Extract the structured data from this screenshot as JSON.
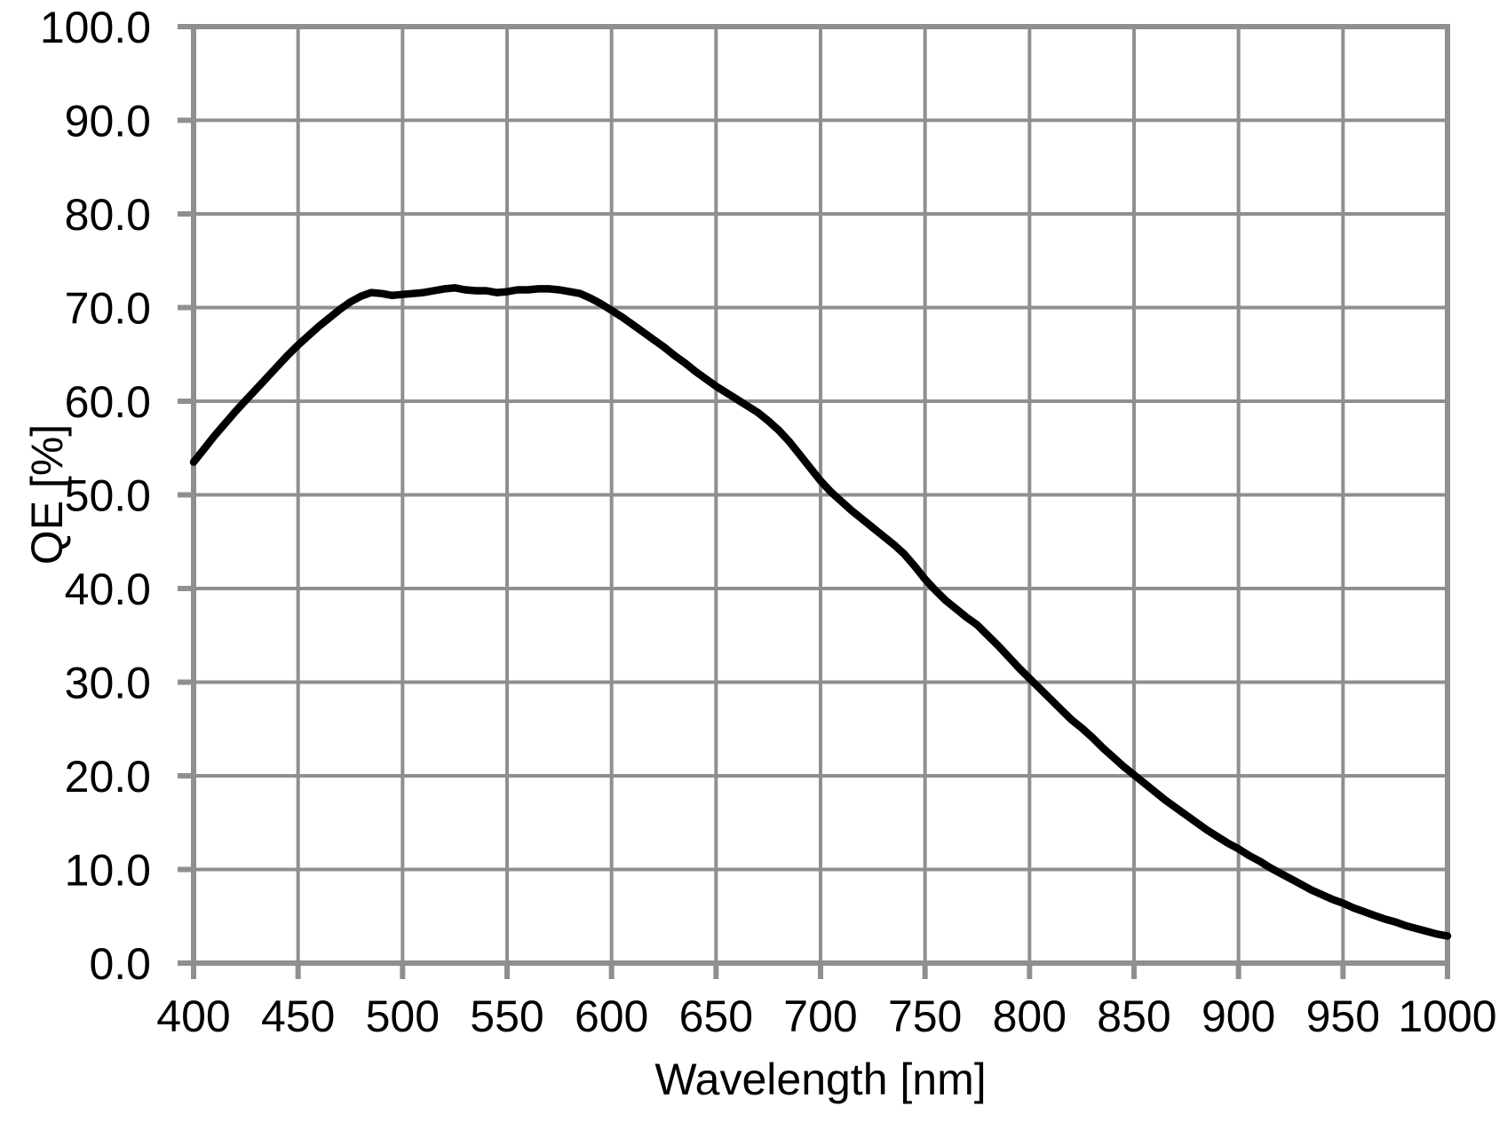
{
  "chart_data": {
    "type": "line",
    "title": "",
    "xlabel": "Wavelength [nm]",
    "ylabel": "QE [%]",
    "xlim": [
      400,
      1000
    ],
    "ylim": [
      0,
      100
    ],
    "grid": true,
    "legend": false,
    "x_ticks": [
      400,
      450,
      500,
      550,
      600,
      650,
      700,
      750,
      800,
      850,
      900,
      950,
      1000
    ],
    "x_tick_labels": [
      "400",
      "450",
      "500",
      "550",
      "600",
      "650",
      "700",
      "750",
      "800",
      "850",
      "900",
      "950",
      "1000"
    ],
    "y_ticks": [
      0,
      10,
      20,
      30,
      40,
      50,
      60,
      70,
      80,
      90,
      100
    ],
    "y_tick_labels": [
      "0.0",
      "10.0",
      "20.0",
      "30.0",
      "40.0",
      "50.0",
      "60.0",
      "70.0",
      "80.0",
      "90.0",
      "100.0"
    ],
    "colors": {
      "curve": "#000000",
      "grid": "#8f8f8f",
      "axis": "#8f8f8f",
      "text": "#000000",
      "background": "#ffffff"
    },
    "series": [
      {
        "name": "QE",
        "color": "#000000",
        "x": [
          400,
          405,
          410,
          415,
          420,
          425,
          430,
          435,
          440,
          445,
          450,
          455,
          460,
          465,
          470,
          475,
          480,
          485,
          490,
          495,
          500,
          505,
          510,
          515,
          520,
          525,
          530,
          535,
          540,
          545,
          550,
          555,
          560,
          565,
          570,
          575,
          580,
          585,
          590,
          595,
          600,
          605,
          610,
          615,
          620,
          625,
          630,
          635,
          640,
          645,
          650,
          655,
          660,
          665,
          670,
          675,
          680,
          685,
          690,
          695,
          700,
          705,
          710,
          715,
          720,
          725,
          730,
          735,
          740,
          745,
          750,
          755,
          760,
          765,
          770,
          775,
          780,
          785,
          790,
          795,
          800,
          805,
          810,
          815,
          820,
          825,
          830,
          835,
          840,
          845,
          850,
          855,
          860,
          865,
          870,
          875,
          880,
          885,
          890,
          895,
          900,
          905,
          910,
          915,
          920,
          925,
          930,
          935,
          940,
          945,
          950,
          955,
          960,
          965,
          970,
          975,
          980,
          985,
          990,
          995,
          1000
        ],
        "values": [
          53.5,
          54.9,
          56.3,
          57.6,
          58.9,
          60.1,
          61.3,
          62.5,
          63.7,
          64.9,
          66.0,
          67.0,
          68.0,
          68.9,
          69.8,
          70.6,
          71.2,
          71.6,
          71.5,
          71.3,
          71.4,
          71.5,
          71.6,
          71.8,
          72.0,
          72.1,
          71.9,
          71.8,
          71.8,
          71.6,
          71.7,
          71.9,
          71.9,
          72.0,
          72.0,
          71.9,
          71.7,
          71.5,
          71.0,
          70.4,
          69.7,
          69.0,
          68.2,
          67.4,
          66.6,
          65.8,
          64.9,
          64.1,
          63.2,
          62.4,
          61.6,
          60.9,
          60.2,
          59.5,
          58.8,
          57.9,
          56.9,
          55.7,
          54.3,
          52.9,
          51.5,
          50.3,
          49.3,
          48.3,
          47.4,
          46.5,
          45.6,
          44.7,
          43.7,
          42.4,
          41.0,
          39.8,
          38.7,
          37.8,
          36.9,
          36.1,
          35.0,
          33.9,
          32.7,
          31.5,
          30.4,
          29.3,
          28.2,
          27.1,
          26.0,
          25.1,
          24.1,
          23.0,
          22.0,
          21.0,
          20.1,
          19.2,
          18.3,
          17.4,
          16.6,
          15.8,
          15.0,
          14.2,
          13.5,
          12.8,
          12.2,
          11.5,
          10.9,
          10.2,
          9.6,
          9.0,
          8.4,
          7.8,
          7.3,
          6.8,
          6.4,
          5.9,
          5.5,
          5.1,
          4.7,
          4.4,
          4.0,
          3.7,
          3.4,
          3.1,
          2.9
        ]
      }
    ]
  }
}
